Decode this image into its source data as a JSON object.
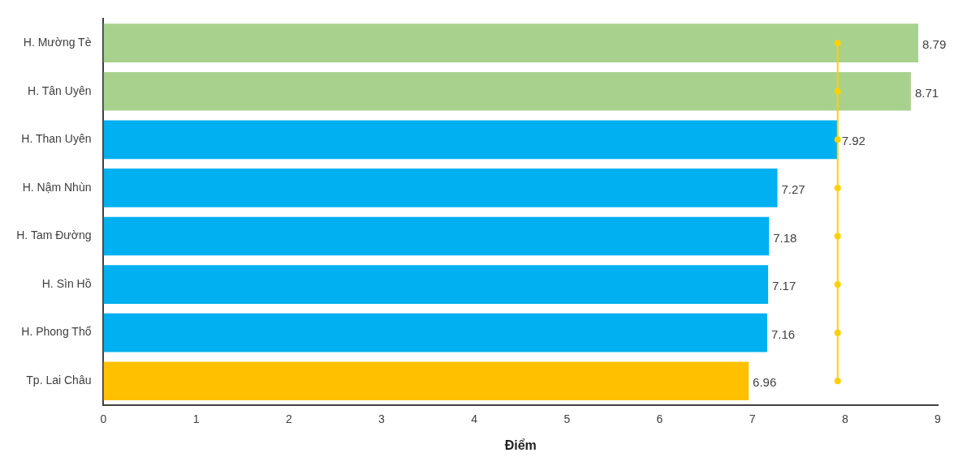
{
  "chart_data": {
    "type": "bar",
    "orientation": "horizontal",
    "xlabel": "Điểm",
    "categories": [
      "H. Mường Tè",
      "H. Tân Uyên",
      "H. Than Uyên",
      "H. Nậm Nhùn",
      "H. Tam Đường",
      "H. Sìn Hồ",
      "H. Phong Thổ",
      "Tp. Lai Châu"
    ],
    "series": [
      {
        "values": [
          8.79,
          8.71,
          7.92,
          7.27,
          7.18,
          7.17,
          7.16,
          6.96
        ],
        "value_labels": [
          "8.79",
          "8.71",
          "7.92",
          "7.27",
          "7.18",
          "7.17",
          "7.16",
          "6.96"
        ],
        "colors": [
          "#a9d18e",
          "#a9d18e",
          "#00b0f0",
          "#00b0f0",
          "#00b0f0",
          "#00b0f0",
          "#00b0f0",
          "#ffc000"
        ]
      },
      {
        "type": "line",
        "values": [
          7.92,
          7.92,
          7.92,
          7.92,
          7.92,
          7.92,
          7.92,
          7.92
        ],
        "color": "#ffd000"
      }
    ],
    "marker": "circle",
    "xlim": [
      0,
      9
    ],
    "xticks": [
      0,
      1,
      2,
      3,
      4,
      5,
      6,
      7,
      8,
      9
    ]
  }
}
